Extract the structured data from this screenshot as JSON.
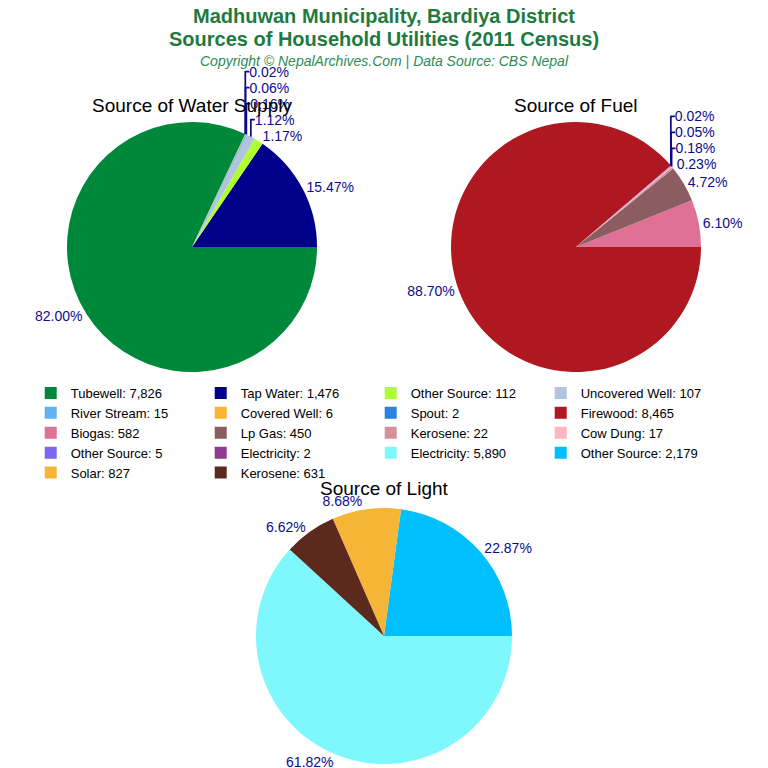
{
  "title": [
    "Madhuwan Municipality, Bardiya District",
    "Sources of Household Utilities (2011 Census)"
  ],
  "subtitle": "Copyright © NepalArchives.Com | Data Source: CBS Nepal",
  "chart_data": [
    {
      "type": "pie",
      "title": "Source of Water Supply",
      "categories": [
        "Tubewell: 7,826",
        "Tap Water: 1,476",
        "Other Source: 112",
        "Uncovered Well: 107",
        "River Stream: 15",
        "Covered Well: 6",
        "Spout: 2"
      ],
      "values": [
        82.0,
        15.47,
        1.17,
        1.12,
        0.16,
        0.06,
        0.02
      ],
      "value_labels": [
        "82.00%",
        "15.47%",
        "1.17%",
        "1.12%",
        "0.16%",
        "0.06%",
        "0.02%"
      ],
      "colors": [
        "#00883a",
        "#00008b",
        "#adff2f",
        "#b0c4de",
        "#63b1f0",
        "#f8b634",
        "#2b82e0"
      ],
      "data_labels": true
    },
    {
      "type": "pie",
      "title": "Source of Fuel",
      "categories": [
        "Firewood: 8,465",
        "Biogas: 582",
        "Lp Gas: 450",
        "Kerosene: 22",
        "Cow Dung: 17",
        "Other Source: 5",
        "Electricity: 2"
      ],
      "values": [
        88.7,
        6.1,
        4.72,
        0.23,
        0.18,
        0.05,
        0.02
      ],
      "value_labels": [
        "88.70%",
        "6.10%",
        "4.72%",
        "0.23%",
        "0.18%",
        "0.05%",
        "0.02%"
      ],
      "colors": [
        "#af1820",
        "#df7096",
        "#8c5d60",
        "#d4919a",
        "#ffb6c1",
        "#7b68ee",
        "#8e3a8f"
      ],
      "data_labels": true
    },
    {
      "type": "pie",
      "title": "Source of Light",
      "categories": [
        "Electricity: 5,890",
        "Other Source: 2,179",
        "Solar: 827",
        "Kerosene: 631"
      ],
      "values": [
        61.82,
        22.87,
        8.68,
        6.62
      ],
      "value_labels": [
        "61.82%",
        "22.87%",
        "8.68%",
        "6.62%"
      ],
      "colors": [
        "#7ff8fd",
        "#00bfff",
        "#f7b538",
        "#5c2a1d"
      ],
      "data_labels": true
    }
  ]
}
